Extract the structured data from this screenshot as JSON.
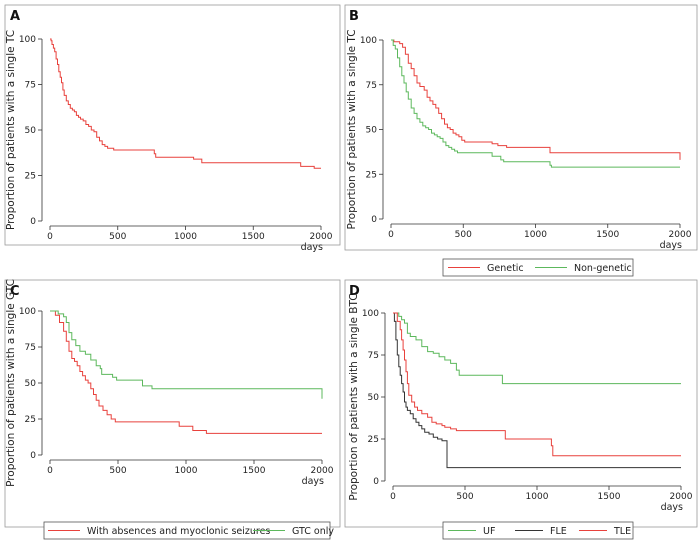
{
  "chart_data": [
    {
      "panel_label": "A",
      "type": "line",
      "step": true,
      "ylabel": "Proportion of patients with a single TC",
      "xlabel": "days",
      "xlim": [
        0,
        2000
      ],
      "ylim": [
        0,
        100
      ],
      "xticks": [
        "0",
        "500",
        "1000",
        "1500",
        "2000"
      ],
      "yticks": [
        "0",
        "25",
        "50",
        "75",
        "100"
      ],
      "series": [
        {
          "color": "#e8413c",
          "points": [
            [
              0,
              100
            ],
            [
              8,
              99
            ],
            [
              15,
              97
            ],
            [
              25,
              95
            ],
            [
              35,
              93
            ],
            [
              45,
              89
            ],
            [
              55,
              86
            ],
            [
              65,
              82
            ],
            [
              75,
              79
            ],
            [
              85,
              76
            ],
            [
              95,
              72
            ],
            [
              105,
              69
            ],
            [
              120,
              66
            ],
            [
              135,
              64
            ],
            [
              150,
              62
            ],
            [
              165,
              61
            ],
            [
              180,
              60
            ],
            [
              195,
              58
            ],
            [
              210,
              57
            ],
            [
              225,
              56
            ],
            [
              245,
              55
            ],
            [
              265,
              53
            ],
            [
              285,
              52
            ],
            [
              305,
              50
            ],
            [
              325,
              49
            ],
            [
              345,
              46
            ],
            [
              365,
              44
            ],
            [
              385,
              42
            ],
            [
              405,
              41
            ],
            [
              425,
              40
            ],
            [
              445,
              40
            ],
            [
              470,
              39
            ],
            [
              760,
              39
            ],
            [
              770,
              37
            ],
            [
              780,
              35
            ],
            [
              1060,
              34
            ],
            [
              1110,
              34
            ],
            [
              1120,
              32
            ],
            [
              1750,
              32
            ],
            [
              1850,
              30
            ],
            [
              1950,
              29
            ],
            [
              2000,
              29
            ]
          ]
        }
      ]
    },
    {
      "panel_label": "B",
      "type": "line",
      "step": true,
      "ylabel": "Proportion of patients with a single TC",
      "xlabel": "days",
      "xlim": [
        0,
        2000
      ],
      "ylim": [
        0,
        100
      ],
      "xticks": [
        "0",
        "500",
        "1000",
        "1500",
        "2000"
      ],
      "yticks": [
        "0",
        "25",
        "50",
        "75",
        "100"
      ],
      "legend": [
        "Genetic",
        "Non-genetic"
      ],
      "series": [
        {
          "name": "Genetic",
          "color": "#e8413c",
          "points": [
            [
              0,
              100
            ],
            [
              20,
              99
            ],
            [
              60,
              98
            ],
            [
              80,
              96
            ],
            [
              100,
              92
            ],
            [
              120,
              87
            ],
            [
              140,
              84
            ],
            [
              160,
              80
            ],
            [
              180,
              76
            ],
            [
              200,
              74
            ],
            [
              230,
              72
            ],
            [
              250,
              68
            ],
            [
              270,
              66
            ],
            [
              290,
              64
            ],
            [
              310,
              62
            ],
            [
              330,
              59
            ],
            [
              350,
              56
            ],
            [
              370,
              53
            ],
            [
              390,
              51
            ],
            [
              410,
              50
            ],
            [
              430,
              48
            ],
            [
              450,
              47
            ],
            [
              470,
              46
            ],
            [
              490,
              44
            ],
            [
              510,
              43
            ],
            [
              680,
              43
            ],
            [
              700,
              42
            ],
            [
              740,
              41
            ],
            [
              800,
              40
            ],
            [
              1000,
              40
            ],
            [
              1100,
              37
            ],
            [
              2000,
              33
            ]
          ]
        },
        {
          "name": "Non-genetic",
          "color": "#5cb85c",
          "points": [
            [
              0,
              100
            ],
            [
              15,
              97
            ],
            [
              30,
              95
            ],
            [
              45,
              90
            ],
            [
              60,
              85
            ],
            [
              75,
              80
            ],
            [
              90,
              76
            ],
            [
              105,
              71
            ],
            [
              120,
              67
            ],
            [
              140,
              62
            ],
            [
              160,
              59
            ],
            [
              180,
              56
            ],
            [
              200,
              54
            ],
            [
              220,
              52
            ],
            [
              240,
              51
            ],
            [
              260,
              50
            ],
            [
              280,
              48
            ],
            [
              300,
              47
            ],
            [
              320,
              46
            ],
            [
              340,
              45
            ],
            [
              360,
              43
            ],
            [
              380,
              41
            ],
            [
              400,
              40
            ],
            [
              420,
              39
            ],
            [
              440,
              38
            ],
            [
              460,
              37
            ],
            [
              680,
              37
            ],
            [
              700,
              35
            ],
            [
              760,
              33
            ],
            [
              780,
              32
            ],
            [
              900,
              32
            ],
            [
              1100,
              30
            ],
            [
              1110,
              29
            ],
            [
              2000,
              29
            ]
          ]
        }
      ]
    },
    {
      "panel_label": "C",
      "type": "line",
      "step": true,
      "ylabel": "Proportion of patients with a single GTC",
      "xlabel": "days",
      "xlim": [
        0,
        2000
      ],
      "ylim": [
        0,
        100
      ],
      "xticks": [
        "0",
        "500",
        "1000",
        "1500",
        "2000"
      ],
      "yticks": [
        "0",
        "25",
        "50",
        "75",
        "100"
      ],
      "legend": [
        "With absences and myoclonic seizures",
        "GTC only"
      ],
      "series": [
        {
          "name": "With absences and myoclonic seizures",
          "color": "#e8413c",
          "points": [
            [
              0,
              100
            ],
            [
              40,
              97
            ],
            [
              70,
              92
            ],
            [
              100,
              86
            ],
            [
              120,
              79
            ],
            [
              140,
              72
            ],
            [
              160,
              67
            ],
            [
              180,
              65
            ],
            [
              200,
              62
            ],
            [
              220,
              58
            ],
            [
              240,
              55
            ],
            [
              260,
              52
            ],
            [
              280,
              50
            ],
            [
              300,
              46
            ],
            [
              320,
              42
            ],
            [
              340,
              38
            ],
            [
              360,
              34
            ],
            [
              390,
              31
            ],
            [
              420,
              28
            ],
            [
              450,
              25
            ],
            [
              480,
              23
            ],
            [
              840,
              23
            ],
            [
              950,
              20
            ],
            [
              1050,
              17
            ],
            [
              1150,
              15
            ],
            [
              2000,
              15
            ]
          ]
        },
        {
          "name": "GTC only",
          "color": "#5cb85c",
          "points": [
            [
              0,
              100
            ],
            [
              60,
              98
            ],
            [
              100,
              96
            ],
            [
              120,
              92
            ],
            [
              140,
              85
            ],
            [
              160,
              80
            ],
            [
              190,
              76
            ],
            [
              220,
              72
            ],
            [
              260,
              70
            ],
            [
              300,
              66
            ],
            [
              340,
              62
            ],
            [
              370,
              60
            ],
            [
              380,
              56
            ],
            [
              440,
              56
            ],
            [
              460,
              54
            ],
            [
              490,
              52
            ],
            [
              600,
              52
            ],
            [
              680,
              48
            ],
            [
              750,
              46
            ],
            [
              900,
              46
            ],
            [
              2000,
              39
            ]
          ]
        }
      ]
    },
    {
      "panel_label": "D",
      "type": "line",
      "step": true,
      "ylabel": "Proportion of patients with a single BTC",
      "xlabel": "days",
      "xlim": [
        0,
        2000
      ],
      "ylim": [
        0,
        100
      ],
      "xticks": [
        "0",
        "500",
        "1000",
        "1500",
        "2000"
      ],
      "yticks": [
        "0",
        "25",
        "50",
        "75",
        "100"
      ],
      "legend": [
        "UF",
        "FLE",
        "TLE"
      ],
      "series": [
        {
          "name": "UF",
          "color": "#5cb85c",
          "points": [
            [
              0,
              100
            ],
            [
              40,
              98
            ],
            [
              60,
              96
            ],
            [
              80,
              94
            ],
            [
              100,
              88
            ],
            [
              120,
              86
            ],
            [
              160,
              84
            ],
            [
              200,
              80
            ],
            [
              240,
              77
            ],
            [
              280,
              76
            ],
            [
              320,
              74
            ],
            [
              360,
              72
            ],
            [
              400,
              70
            ],
            [
              440,
              66
            ],
            [
              460,
              63
            ],
            [
              720,
              63
            ],
            [
              760,
              58
            ],
            [
              2000,
              58
            ]
          ]
        },
        {
          "name": "FLE",
          "color": "#333333",
          "points": [
            [
              0,
              100
            ],
            [
              10,
              95
            ],
            [
              20,
              84
            ],
            [
              30,
              75
            ],
            [
              40,
              68
            ],
            [
              50,
              63
            ],
            [
              60,
              58
            ],
            [
              70,
              53
            ],
            [
              80,
              47
            ],
            [
              90,
              44
            ],
            [
              100,
              42
            ],
            [
              120,
              40
            ],
            [
              140,
              37
            ],
            [
              160,
              35
            ],
            [
              180,
              33
            ],
            [
              200,
              31
            ],
            [
              220,
              29
            ],
            [
              250,
              28
            ],
            [
              280,
              26
            ],
            [
              310,
              25
            ],
            [
              340,
              24
            ],
            [
              370,
              24
            ],
            [
              375,
              8
            ],
            [
              2000,
              8
            ]
          ]
        },
        {
          "name": "TLE",
          "color": "#e8413c",
          "points": [
            [
              0,
              100
            ],
            [
              30,
              95
            ],
            [
              50,
              90
            ],
            [
              60,
              84
            ],
            [
              70,
              78
            ],
            [
              80,
              72
            ],
            [
              90,
              65
            ],
            [
              100,
              58
            ],
            [
              110,
              51
            ],
            [
              130,
              47
            ],
            [
              150,
              44
            ],
            [
              170,
              42
            ],
            [
              200,
              40
            ],
            [
              240,
              38
            ],
            [
              270,
              35
            ],
            [
              300,
              34
            ],
            [
              340,
              33
            ],
            [
              360,
              32
            ],
            [
              400,
              31
            ],
            [
              440,
              30
            ],
            [
              760,
              30
            ],
            [
              780,
              25
            ],
            [
              1100,
              21
            ],
            [
              1110,
              15
            ],
            [
              2000,
              15
            ]
          ]
        }
      ]
    }
  ]
}
